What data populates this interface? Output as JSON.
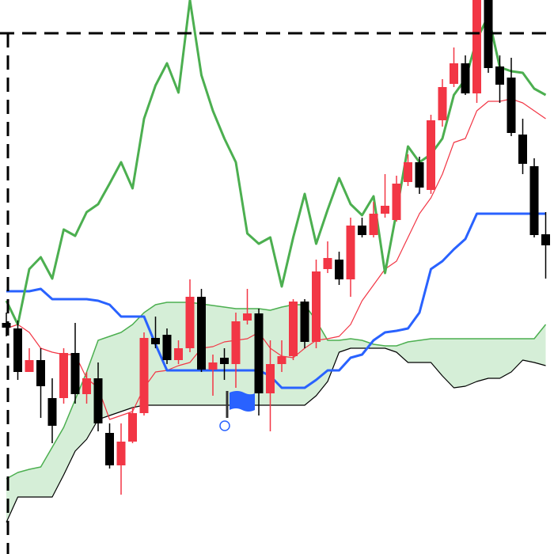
{
  "chart_data": {
    "type": "candlestick",
    "ylim": [
      0,
      700
    ],
    "up_color": "#f23645",
    "down_color": "#000000",
    "open": [
      292,
      285,
      230,
      245,
      197,
      197,
      254,
      202,
      222,
      153,
      112,
      142,
      178,
      273,
      277,
      245,
      260,
      325,
      233,
      248,
      240,
      295,
      304,
      203,
      240,
      250,
      319,
      268,
      360,
      372,
      347,
      415,
      403,
      430,
      422,
      470,
      495,
      460,
      548,
      594,
      620,
      582,
      705,
      616,
      602,
      530,
      490,
      404
    ],
    "high": [
      305,
      295,
      260,
      260,
      222,
      260,
      292,
      230,
      242,
      165,
      165,
      185,
      280,
      300,
      285,
      270,
      347,
      335,
      252,
      260,
      305,
      335,
      310,
      270,
      270,
      322,
      322,
      372,
      395,
      382,
      425,
      425,
      445,
      480,
      478,
      505,
      502,
      555,
      600,
      640,
      630,
      720,
      720,
      630,
      627,
      550,
      500,
      432
    ],
    "low": [
      275,
      220,
      230,
      172,
      140,
      190,
      190,
      190,
      155,
      108,
      75,
      140,
      175,
      260,
      240,
      240,
      255,
      230,
      200,
      220,
      210,
      290,
      175,
      155,
      230,
      245,
      260,
      260,
      355,
      340,
      325,
      400,
      400,
      425,
      420,
      465,
      455,
      455,
      540,
      590,
      580,
      570,
      608,
      570,
      528,
      480,
      400,
      348
    ],
    "close": [
      286,
      230,
      245,
      212,
      162,
      254,
      202,
      222,
      165,
      112,
      142,
      178,
      273,
      265,
      245,
      260,
      325,
      233,
      242,
      240,
      294,
      304,
      203,
      240,
      250,
      319,
      268,
      357,
      374,
      347,
      415,
      403,
      430,
      440,
      468,
      495,
      463,
      548,
      590,
      620,
      582,
      705,
      614,
      593,
      532,
      493,
      403,
      390
    ],
    "lines": [
      {
        "color": "#f23645",
        "width": 1.2,
        "values": [
          285,
          290,
          280,
          260,
          255,
          252,
          252,
          222,
          210,
          170,
          175,
          180,
          210,
          230,
          232,
          238,
          242,
          260,
          262,
          268,
          270,
          272,
          280,
          260,
          250,
          248,
          260,
          270,
          272,
          275,
          290,
          320,
          340,
          360,
          370,
          400,
          430,
          450,
          480,
          520,
          525,
          560,
          572,
          572,
          575,
          570,
          560,
          550
        ]
      },
      {
        "color": "#2962ff",
        "width": 3,
        "values": [
          332,
          332,
          332,
          335,
          322,
          322,
          322,
          322,
          320,
          315,
          300,
          300,
          300,
          265,
          232,
          232,
          232,
          232,
          232,
          232,
          232,
          232,
          232,
          225,
          210,
          210,
          210,
          220,
          232,
          232,
          248,
          252,
          270,
          280,
          282,
          285,
          305,
          360,
          370,
          385,
          398,
          430,
          430,
          430,
          430,
          430,
          430,
          430
        ]
      },
      {
        "color": "#4caf50",
        "width": 3,
        "values": [
          320,
          290,
          360,
          375,
          348,
          410,
          402,
          432,
          442,
          468,
          495,
          462,
          550,
          592,
          620,
          583,
          700,
          605,
          560,
          525,
          495,
          405,
          392,
          400,
          338,
          400,
          455,
          392,
          435,
          475,
          442,
          428,
          452,
          355,
          432,
          515,
          495,
          505,
          525,
          580,
          600,
          650,
          680,
          615,
          610,
          608,
          588,
          580
        ]
      }
    ],
    "cloud": {
      "a": {
        "color": "#4caf50",
        "width": 1.5,
        "values": [
          95,
          103,
          107,
          110,
          135,
          160,
          195,
          230,
          270,
          275,
          280,
          290,
          305,
          315,
          318,
          318,
          318,
          316,
          314,
          312,
          310,
          310,
          310,
          308,
          312,
          315,
          315,
          295,
          270,
          270,
          272,
          270,
          265,
          263,
          263,
          268,
          270,
          272,
          272,
          272,
          272,
          272,
          272,
          272,
          272,
          272,
          272,
          290
        ]
      },
      "b": {
        "color": "#000000",
        "width": 1.2,
        "values": [
          40,
          72,
          72,
          72,
          72,
          100,
          130,
          145,
          170,
          175,
          180,
          185,
          188,
          188,
          188,
          188,
          188,
          188,
          188,
          188,
          188,
          188,
          188,
          188,
          188,
          188,
          188,
          200,
          218,
          255,
          260,
          260,
          260,
          260,
          255,
          242,
          242,
          242,
          225,
          210,
          212,
          218,
          222,
          222,
          230,
          245,
          242,
          238
        ]
      },
      "up_fill": "#d5eed7",
      "down_fill": "#c9c9cc"
    }
  }
}
